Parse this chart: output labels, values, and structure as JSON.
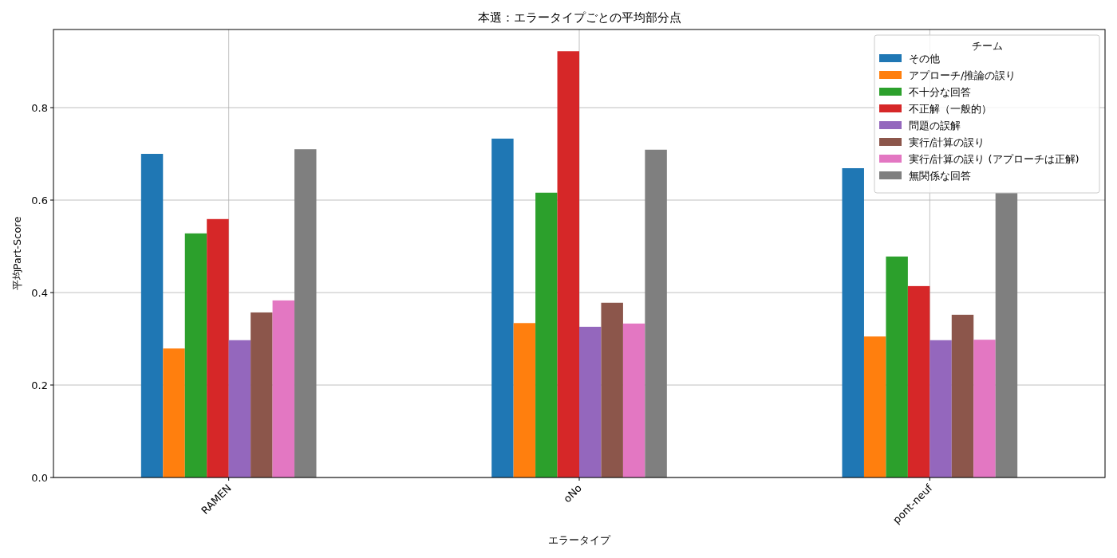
{
  "chart_data": {
    "type": "bar",
    "title": "本選：エラータイプごとの平均部分点",
    "xlabel": "エラータイプ",
    "ylabel": "平均Part-Score",
    "legend_title": "チーム",
    "categories": [
      "RAMEN",
      "oNo",
      "pont-neuf"
    ],
    "series": [
      {
        "name": "その他",
        "color": "#1f77b4",
        "values": [
          0.7,
          0.733,
          0.669
        ]
      },
      {
        "name": "アプローチ/推論の誤り",
        "color": "#ff7f0e",
        "values": [
          0.279,
          0.334,
          0.305
        ]
      },
      {
        "name": "不十分な回答",
        "color": "#2ca02c",
        "values": [
          0.528,
          0.616,
          0.478
        ]
      },
      {
        "name": "不正解（一般的）",
        "color": "#d62728",
        "values": [
          0.559,
          0.922,
          0.414
        ]
      },
      {
        "name": "問題の誤解",
        "color": "#9467bd",
        "values": [
          0.297,
          0.326,
          0.297
        ]
      },
      {
        "name": "実行/計算の誤り",
        "color": "#8c564b",
        "values": [
          0.357,
          0.378,
          0.352
        ]
      },
      {
        "name": "実行/計算の誤り (アプローチは正解)",
        "color": "#e377c2",
        "values": [
          0.383,
          0.333,
          0.298
        ]
      },
      {
        "name": "無関係な回答",
        "color": "#7f7f7f",
        "values": [
          0.71,
          0.709,
          0.616
        ]
      }
    ],
    "ylim": [
      0,
      0.969
    ],
    "yticks": [
      {
        "value": 0,
        "label": "0.0"
      },
      {
        "value": 0.2,
        "label": "0.2"
      },
      {
        "value": 0.4,
        "label": "0.4"
      },
      {
        "value": 0.6,
        "label": "0.6"
      },
      {
        "value": 0.8,
        "label": "0.8"
      }
    ],
    "grid": true,
    "legend": "top right"
  }
}
